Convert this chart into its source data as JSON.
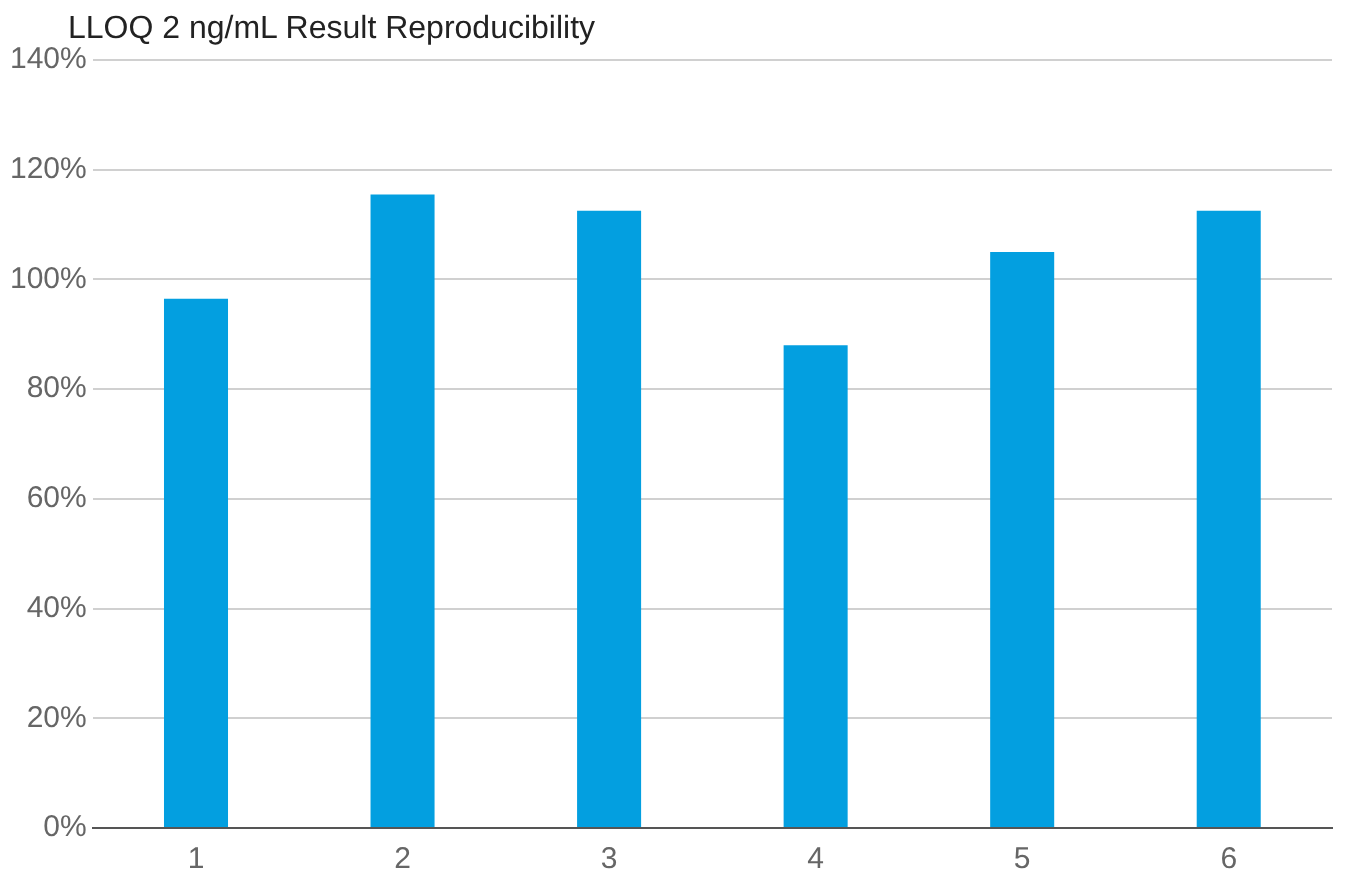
{
  "chart_data": {
    "type": "bar",
    "title": "LLOQ 2 ng/mL Result Reproducibility",
    "categories": [
      "1",
      "2",
      "3",
      "4",
      "5",
      "6"
    ],
    "values": [
      96.5,
      115.5,
      112.5,
      88,
      105,
      112.5
    ],
    "color": "#039fe0",
    "ylim": [
      0,
      140
    ],
    "yticks": [
      {
        "value": 0,
        "label": "0%"
      },
      {
        "value": 20,
        "label": "20%"
      },
      {
        "value": 40,
        "label": "40%"
      },
      {
        "value": 60,
        "label": "60%"
      },
      {
        "value": 80,
        "label": "80%"
      },
      {
        "value": 100,
        "label": "100%"
      },
      {
        "value": 120,
        "label": "120%"
      },
      {
        "value": 140,
        "label": "140%"
      }
    ],
    "grid": "y",
    "legend": false
  }
}
